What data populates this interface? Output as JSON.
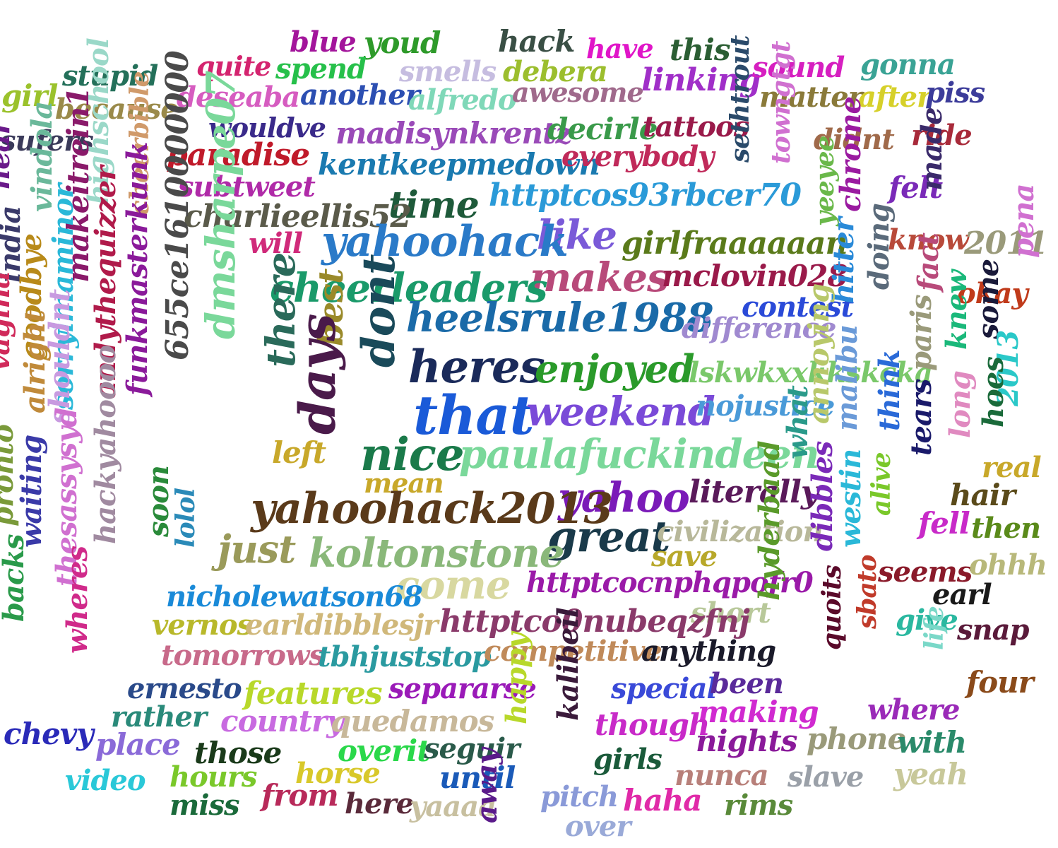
{
  "background": "#ffffff",
  "words": [
    {
      "text": "blue",
      "color": "#a3159b"
    },
    {
      "text": "youd",
      "color": "#2e9a2a"
    },
    {
      "text": "hack",
      "color": "#3a4f45"
    },
    {
      "text": "have",
      "color": "#e015c8"
    },
    {
      "text": "this",
      "color": "#2b5e33"
    },
    {
      "text": "quite",
      "color": "#d4246f"
    },
    {
      "text": "spend",
      "color": "#26c04a"
    },
    {
      "text": "smells",
      "color": "#c6bde0"
    },
    {
      "text": "debera",
      "color": "#9cbe2e"
    },
    {
      "text": "linking",
      "color": "#a02fc8"
    },
    {
      "text": "sound",
      "color": "#d61fc0"
    },
    {
      "text": "gonna",
      "color": "#3aa395"
    },
    {
      "text": "stupid",
      "color": "#24705a"
    },
    {
      "text": "girl",
      "color": "#9bc22c"
    },
    {
      "text": "deseaba",
      "color": "#d65cc0"
    },
    {
      "text": "another",
      "color": "#2c4fb2"
    },
    {
      "text": "alfredo",
      "color": "#7fd8b8"
    },
    {
      "text": "awesome",
      "color": "#a06a8c"
    },
    {
      "text": "matter",
      "color": "#8a7a3a"
    },
    {
      "text": "after",
      "color": "#d6d02a"
    },
    {
      "text": "piss",
      "color": "#3c3c9a"
    },
    {
      "text": "because",
      "color": "#9a8a4a"
    },
    {
      "text": "wouldve",
      "color": "#3a2a8a"
    },
    {
      "text": "madisynkrentz",
      "color": "#9a4ab8"
    },
    {
      "text": "decirle",
      "color": "#3a9a4a"
    },
    {
      "text": "tattoos",
      "color": "#9a1a4a"
    },
    {
      "text": "sufers",
      "color": "#3a3a5a"
    },
    {
      "text": "didnt",
      "color": "#a06a4a"
    },
    {
      "text": "ride",
      "color": "#a82a3a"
    },
    {
      "text": "paradise",
      "color": "#c01a2a"
    },
    {
      "text": "kentkeepmedown",
      "color": "#1a7ab0"
    },
    {
      "text": "everybody",
      "color": "#c02a5a"
    },
    {
      "text": "sethtrout",
      "color": "#2a4a6a"
    },
    {
      "text": "towngtgt",
      "color": "#d070d0"
    },
    {
      "text": "highschool",
      "color": "#9ad8c8"
    },
    {
      "text": "cheerbible",
      "color": "#d09a6a"
    },
    {
      "text": "subtweet",
      "color": "#b02aa8"
    },
    {
      "text": "httptcos93rbcer70",
      "color": "#2a9ad8"
    },
    {
      "text": "felt",
      "color": "#7a2ab8"
    },
    {
      "text": "made",
      "color": "#3a2a6a"
    },
    {
      "text": "hear",
      "color": "#6a1a8a"
    },
    {
      "text": "vindola",
      "color": "#6ab89a"
    },
    {
      "text": "time",
      "color": "#1e5a3a"
    },
    {
      "text": "yeeyee",
      "color": "#6ab84a"
    },
    {
      "text": "chrome",
      "color": "#9a1aa0"
    },
    {
      "text": "charlieellis52",
      "color": "#5a5a4a"
    },
    {
      "text": "like",
      "color": "#7a5ad8"
    },
    {
      "text": "makeitrein1",
      "color": "#8a1a6a"
    },
    {
      "text": "will",
      "color": "#d02a7a"
    },
    {
      "text": "yahoohack",
      "color": "#2a7ac8"
    },
    {
      "text": "girlfraaaaaan",
      "color": "#5a7a1a"
    },
    {
      "text": "know",
      "color": "#b84a3a"
    },
    {
      "text": "2011",
      "color": "#9a9a7a"
    },
    {
      "text": "pena",
      "color": "#d070d0"
    },
    {
      "text": "india",
      "color": "#3a3a6a"
    },
    {
      "text": "655ce1610000000",
      "color": "#4a4a4a"
    },
    {
      "text": "dmsharpe07",
      "color": "#7ad89a"
    },
    {
      "text": "makes",
      "color": "#b84a7a"
    },
    {
      "text": "mclovin028",
      "color": "#9a1a4a"
    },
    {
      "text": "doing",
      "color": "#5a6a7a"
    },
    {
      "text": "fact",
      "color": "#b84a7a"
    },
    {
      "text": "okay",
      "color": "#c03a1a"
    },
    {
      "text": "cheerleaders",
      "color": "#1a9a6a"
    },
    {
      "text": "contest",
      "color": "#2a4ad8"
    },
    {
      "text": "hitter",
      "color": "#2a8ad8"
    },
    {
      "text": "sorryimaminor",
      "color": "#2ab8d8"
    },
    {
      "text": "andythequizzer",
      "color": "#b01a4a"
    },
    {
      "text": "funkmasterkunk",
      "color": "#8a1a9a"
    },
    {
      "text": "heelsrule1988",
      "color": "#1a6aa8"
    },
    {
      "text": "difference",
      "color": "#a08ad0"
    },
    {
      "text": "goodbye",
      "color": "#b88a1a"
    },
    {
      "text": "there",
      "color": "#2a6a5a"
    },
    {
      "text": "best",
      "color": "#9a8a2a"
    },
    {
      "text": "dont",
      "color": "#1a4a5a"
    },
    {
      "text": "knew",
      "color": "#1ab87a"
    },
    {
      "text": "some",
      "color": "#1a1a3a"
    },
    {
      "text": "vagina",
      "color": "#d02a5a"
    },
    {
      "text": "heres",
      "color": "#1a2a5a"
    },
    {
      "text": "enjoyed",
      "color": "#2a9a2a"
    },
    {
      "text": "lskwkxxkkskcka",
      "color": "#7ac86a"
    },
    {
      "text": "paris",
      "color": "#9a9a7a"
    },
    {
      "text": "alright",
      "color": "#c08a3a"
    },
    {
      "text": "shouldnt",
      "color": "#c89ae0"
    },
    {
      "text": "that",
      "color": "#1a5ad8"
    },
    {
      "text": "weekend",
      "color": "#7a4ad8"
    },
    {
      "text": "nojustice",
      "color": "#4a9ad8"
    },
    {
      "text": "annoying",
      "color": "#b8c86a"
    },
    {
      "text": "2013",
      "color": "#2ac8c8"
    },
    {
      "text": "days",
      "color": "#4a1a4a"
    },
    {
      "text": "left",
      "color": "#c8a82a"
    },
    {
      "text": "nice",
      "color": "#1a7a4a"
    },
    {
      "text": "paulafuckindeen",
      "color": "#7ad89a"
    },
    {
      "text": "what",
      "color": "#2a9a8a"
    },
    {
      "text": "malibu",
      "color": "#6a9ad8"
    },
    {
      "text": "think",
      "color": "#2a6ad8"
    },
    {
      "text": "tears",
      "color": "#1a1a6a"
    },
    {
      "text": "long",
      "color": "#e08ac0"
    },
    {
      "text": "hoes",
      "color": "#1a6a3a"
    },
    {
      "text": "real",
      "color": "#c8a82a"
    },
    {
      "text": "mean",
      "color": "#c8a82a"
    },
    {
      "text": "yahoo",
      "color": "#7a1ab8"
    },
    {
      "text": "literally",
      "color": "#5a1a5a"
    },
    {
      "text": "hair",
      "color": "#5a4a1a"
    },
    {
      "text": "pronto",
      "color": "#7a9a3a"
    },
    {
      "text": "hackyahoooo",
      "color": "#a08aa0"
    },
    {
      "text": "yahoohack2013",
      "color": "#5a3a1a"
    },
    {
      "text": "fell",
      "color": "#c82ac8"
    },
    {
      "text": "then",
      "color": "#5a8a1a"
    },
    {
      "text": "waiting",
      "color": "#3a3aa8"
    },
    {
      "text": "thesassysyd",
      "color": "#d070d0"
    },
    {
      "text": "soon",
      "color": "#2a8a3a"
    },
    {
      "text": "lolol",
      "color": "#2a8ab8"
    },
    {
      "text": "great",
      "color": "#1a3a4a"
    },
    {
      "text": "civilization",
      "color": "#b8b89a"
    },
    {
      "text": "alive",
      "color": "#7ac82a"
    },
    {
      "text": "just",
      "color": "#9a9a5a"
    },
    {
      "text": "koltonstone",
      "color": "#8ab87a"
    },
    {
      "text": "save",
      "color": "#b8a82a"
    },
    {
      "text": "dibbles",
      "color": "#7a2ab8"
    },
    {
      "text": "westin",
      "color": "#2ab8d8"
    },
    {
      "text": "seems",
      "color": "#8a1a2a"
    },
    {
      "text": "ohhh",
      "color": "#b8b87a"
    },
    {
      "text": "come",
      "color": "#d8d8a0"
    },
    {
      "text": "httptcocnphqpofr0",
      "color": "#9a1aa8"
    },
    {
      "text": "hyderbaad",
      "color": "#5a9a2a"
    },
    {
      "text": "earl",
      "color": "#1a1a1a"
    },
    {
      "text": "nicholewatson68",
      "color": "#1a8ad8"
    },
    {
      "text": "short",
      "color": "#b8c89a"
    },
    {
      "text": "backs",
      "color": "#2a9a4a"
    },
    {
      "text": "vernos",
      "color": "#b8b82a"
    },
    {
      "text": "earldibblesjr",
      "color": "#d0b87a"
    },
    {
      "text": "httptco0nubeqzfnj",
      "color": "#8a3a6a"
    },
    {
      "text": "give",
      "color": "#2ab8a0"
    },
    {
      "text": "snap",
      "color": "#5a1a3a"
    },
    {
      "text": "sbato",
      "color": "#c03a2a"
    },
    {
      "text": "quoits",
      "color": "#5a0a2a"
    },
    {
      "text": "wheres",
      "color": "#d02a8a"
    },
    {
      "text": "tomorrows",
      "color": "#c86a8a"
    },
    {
      "text": "tbhjuststop",
      "color": "#2a9aa0"
    },
    {
      "text": "competitive",
      "color": "#c08a5a"
    },
    {
      "text": "anything",
      "color": "#1a1a2a"
    },
    {
      "text": "life",
      "color": "#7ad8c8"
    },
    {
      "text": "four",
      "color": "#8a4a1a"
    },
    {
      "text": "ernesto",
      "color": "#2a4a8a"
    },
    {
      "text": "features",
      "color": "#b8d82a"
    },
    {
      "text": "separarse",
      "color": "#9a1ab8"
    },
    {
      "text": "special",
      "color": "#3a4ad8"
    },
    {
      "text": "been",
      "color": "#5a2a9a"
    },
    {
      "text": "kalibeil",
      "color": "#3a1a3a"
    },
    {
      "text": "happy",
      "color": "#b8d82a"
    },
    {
      "text": "rather",
      "color": "#2a8a7a"
    },
    {
      "text": "country",
      "color": "#c86ae0"
    },
    {
      "text": "quedamos",
      "color": "#c8b89a"
    },
    {
      "text": "making",
      "color": "#d02ad0"
    },
    {
      "text": "where",
      "color": "#9a2ab8"
    },
    {
      "text": "chevy",
      "color": "#2a2ab8"
    },
    {
      "text": "though",
      "color": "#c82ac8"
    },
    {
      "text": "nights",
      "color": "#8a1a9a"
    },
    {
      "text": "phone",
      "color": "#9a9a7a"
    },
    {
      "text": "with",
      "color": "#2a8a6a"
    },
    {
      "text": "place",
      "color": "#8a6ad8"
    },
    {
      "text": "those",
      "color": "#1a3a1a"
    },
    {
      "text": "overit",
      "color": "#2ad84a"
    },
    {
      "text": "seguir",
      "color": "#2a5a4a"
    },
    {
      "text": "girls",
      "color": "#1a5a3a"
    },
    {
      "text": "video",
      "color": "#2ac8d8"
    },
    {
      "text": "hours",
      "color": "#7ac82a"
    },
    {
      "text": "horse",
      "color": "#d8c82a"
    },
    {
      "text": "until",
      "color": "#1a5ab8"
    },
    {
      "text": "nunca",
      "color": "#b8807a"
    },
    {
      "text": "slave",
      "color": "#9aa0a8"
    },
    {
      "text": "yeah",
      "color": "#c8c89a"
    },
    {
      "text": "miss",
      "color": "#1a6a3a"
    },
    {
      "text": "from",
      "color": "#b82a5a"
    },
    {
      "text": "here",
      "color": "#5a2a3a"
    },
    {
      "text": "yaaaa",
      "color": "#c8c0a0"
    },
    {
      "text": "pitch",
      "color": "#8a9ad8"
    },
    {
      "text": "haha",
      "color": "#e02aa8"
    },
    {
      "text": "rims",
      "color": "#5a8a3a"
    },
    {
      "text": "over",
      "color": "#9aaad8"
    },
    {
      "text": "away",
      "color": "#5a1a8a"
    }
  ]
}
